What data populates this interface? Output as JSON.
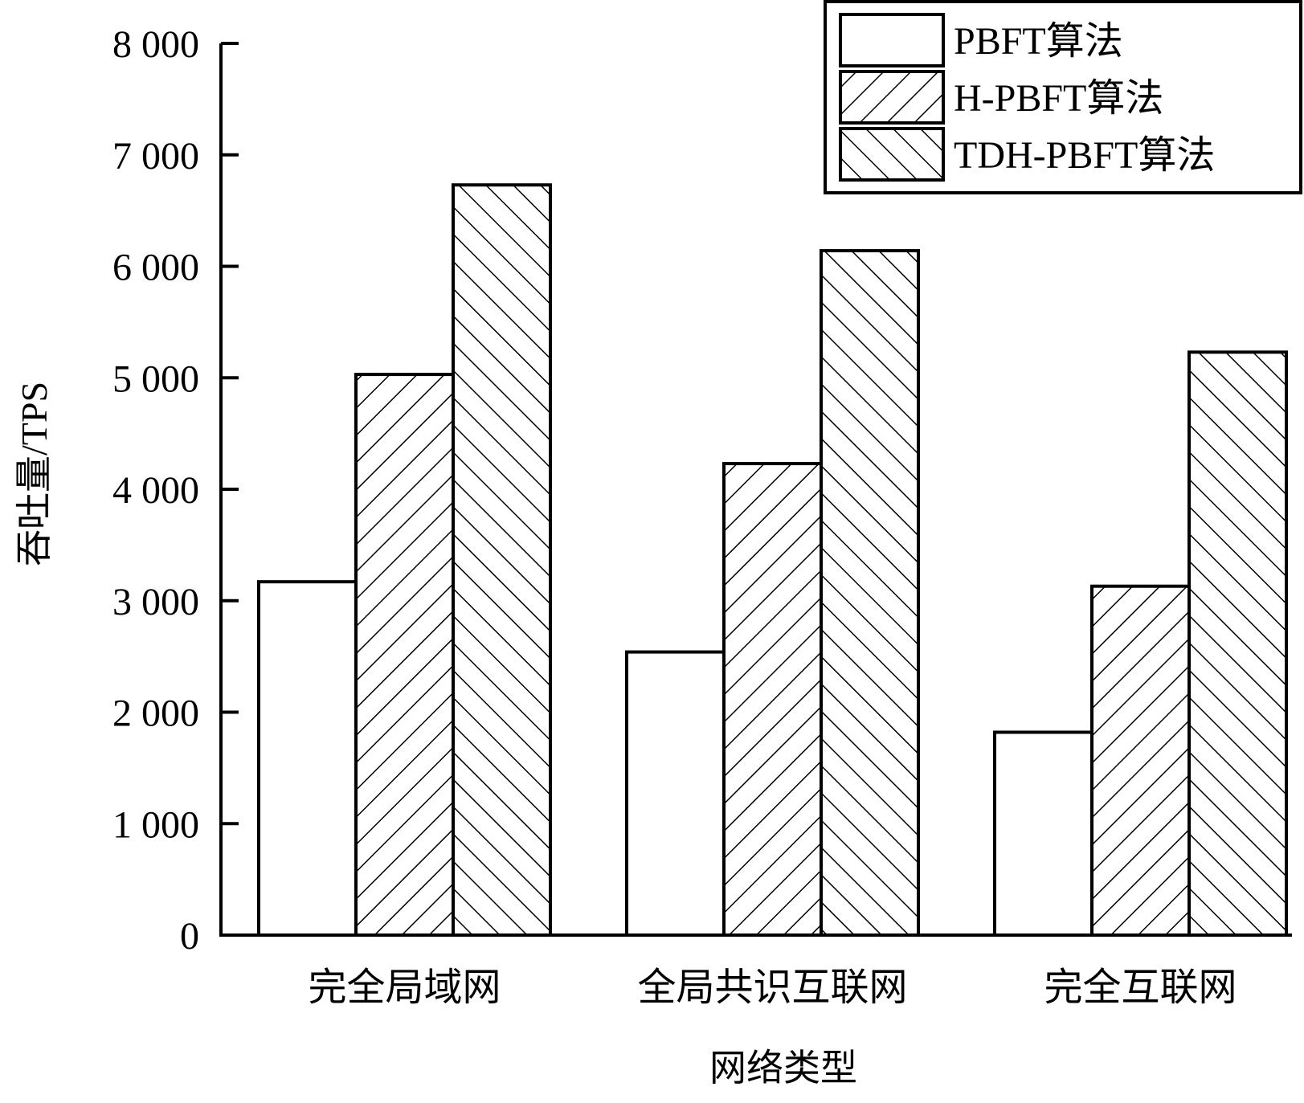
{
  "chart_data": {
    "type": "bar",
    "xlabel": "网络类型",
    "ylabel": "吞吐量/TPS",
    "ylim": [
      0,
      8000
    ],
    "yticks": [
      0,
      1000,
      2000,
      3000,
      4000,
      5000,
      6000,
      7000,
      8000
    ],
    "ytick_labels": [
      "0",
      "1 000",
      "2 000",
      "3 000",
      "4 000",
      "5 000",
      "6 000",
      "7 000",
      "8 000"
    ],
    "categories": [
      "完全局域网",
      "全局共识互联网",
      "完全互联网"
    ],
    "series": [
      {
        "name": "PBFT算法",
        "pattern": "none",
        "values": [
          3170,
          2540,
          1820
        ]
      },
      {
        "name": "H-PBFT算法",
        "pattern": "forward-hatch",
        "values": [
          5030,
          4230,
          3130
        ]
      },
      {
        "name": "TDH-PBFT算法",
        "pattern": "back-hatch",
        "values": [
          6730,
          6140,
          5230
        ]
      }
    ],
    "legend_position": "top-right",
    "grid": false,
    "colors": {
      "stroke": "#000000",
      "fill": "#ffffff"
    }
  }
}
